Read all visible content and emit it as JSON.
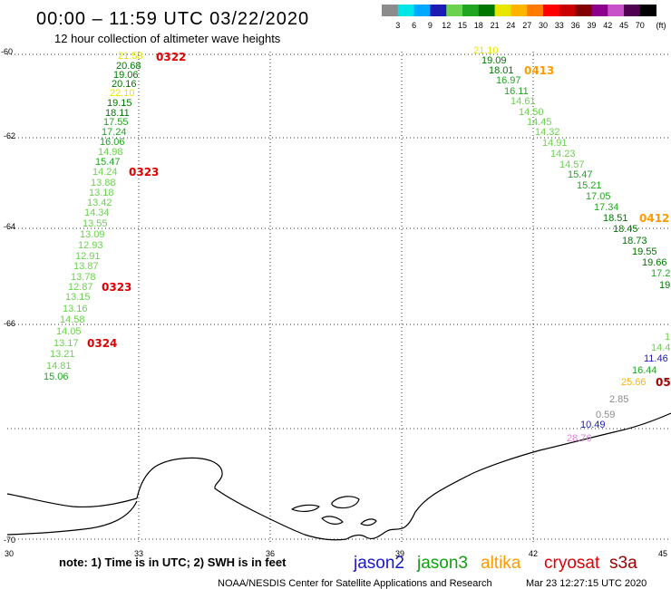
{
  "title": "00:00 – 11:59 UTC 03/22/2020",
  "subtitle": "12 hour collection of altimeter wave heights",
  "legend": {
    "colors": [
      "#8c8c8c",
      "#00e6e6",
      "#00a8ff",
      "#1c1cb4",
      "#6ad24e",
      "#22a622",
      "#007800",
      "#e6e600",
      "#ffb400",
      "#ff7a00",
      "#ff0000",
      "#c80000",
      "#820000",
      "#8c008c",
      "#c850c8",
      "#500050",
      "#000000"
    ],
    "labels": [
      "3",
      "6",
      "9",
      "12",
      "15",
      "18",
      "21",
      "24",
      "27",
      "30",
      "33",
      "36",
      "39",
      "42",
      "45",
      "70"
    ],
    "unit": "(ft)"
  },
  "axes": {
    "latitude_labels": [
      "-60",
      "-62",
      "-64",
      "-66",
      "-70"
    ],
    "longitude_labels": [
      "30",
      "33",
      "36",
      "39",
      "42",
      "45"
    ]
  },
  "tracks": [
    {
      "values": [
        {
          "value": "21.53"
        },
        {
          "value": "20.68"
        },
        {
          "value": "19.06"
        },
        {
          "value": "20.16"
        },
        {
          "value": "22.10"
        },
        {
          "value": "19.15"
        },
        {
          "value": "18.11"
        },
        {
          "value": "17.55"
        },
        {
          "value": "17.24"
        },
        {
          "value": "16.06"
        },
        {
          "value": "14.98"
        },
        {
          "value": "15.47"
        },
        {
          "value": "14.24"
        },
        {
          "value": "13.88"
        },
        {
          "value": "13.18"
        },
        {
          "value": "13.42"
        },
        {
          "value": "14.34"
        },
        {
          "value": "13.55"
        },
        {
          "value": "13.09"
        },
        {
          "value": "12.93"
        },
        {
          "value": "12.91"
        },
        {
          "value": "13.87"
        },
        {
          "value": "13.78"
        },
        {
          "value": "12.87"
        },
        {
          "value": "13.15"
        },
        {
          "value": "13.16"
        },
        {
          "value": "14.58"
        },
        {
          "value": "14.05"
        },
        {
          "value": "13.17"
        },
        {
          "value": "13.21"
        },
        {
          "value": "14.81"
        },
        {
          "value": "15.06"
        }
      ],
      "times": [
        {
          "text": "0322",
          "color": "#e00000"
        },
        {
          "text": "0323",
          "color": "#e00000"
        },
        {
          "text": "0323",
          "color": "#e00000"
        },
        {
          "text": "0324",
          "color": "#e00000"
        }
      ]
    },
    {
      "values": [
        {
          "value": "21.10"
        },
        {
          "value": "19.09"
        },
        {
          "value": "18.01"
        },
        {
          "value": "16.97"
        },
        {
          "value": "16.11"
        },
        {
          "value": "14.61"
        },
        {
          "value": "14.50"
        },
        {
          "value": "14.45"
        },
        {
          "value": "14.32"
        },
        {
          "value": "14.91"
        },
        {
          "value": "14.23"
        },
        {
          "value": "14.57"
        },
        {
          "value": "15.47"
        },
        {
          "value": "15.21"
        },
        {
          "value": "17.05"
        },
        {
          "value": "17.34"
        },
        {
          "value": "18.51"
        },
        {
          "value": "18.45"
        },
        {
          "value": "18.73"
        },
        {
          "value": "19.55"
        },
        {
          "value": "19.66"
        },
        {
          "value": "17.2"
        },
        {
          "value": "19"
        }
      ],
      "times": [
        {
          "text": "0413",
          "color": "#ff9a00"
        },
        {
          "text": "0412",
          "color": "#ff9a00"
        }
      ]
    },
    {
      "values": [
        {
          "value": "1",
          "color": "#6ad24e"
        },
        {
          "value": "14.4"
        },
        {
          "value": "11.46"
        },
        {
          "value": "16.44"
        },
        {
          "value": "25.66"
        },
        {
          "value": "2.85"
        },
        {
          "value": "0.59"
        },
        {
          "value": "10.49"
        },
        {
          "value": "28.76",
          "color": "#e080e0"
        }
      ],
      "times": [
        {
          "text": "05",
          "color": "#a00000"
        }
      ]
    }
  ],
  "note": "note: 1) Time is in UTC; 2) SWH is in feet",
  "satellites": [
    {
      "name": "jason2",
      "color": "#1818c8"
    },
    {
      "name": "jason3",
      "color": "#10a010"
    },
    {
      "name": "altika",
      "color": "#ff9a00"
    },
    {
      "name": "cryosat",
      "color": "#e00000"
    },
    {
      "name": "s3a",
      "color": "#a00000"
    }
  ],
  "footer": {
    "credit": "NOAA/NESDIS Center for Satellite Applications and Research",
    "timestamp": "Mar 23 12:27:15 UTC 2020"
  }
}
